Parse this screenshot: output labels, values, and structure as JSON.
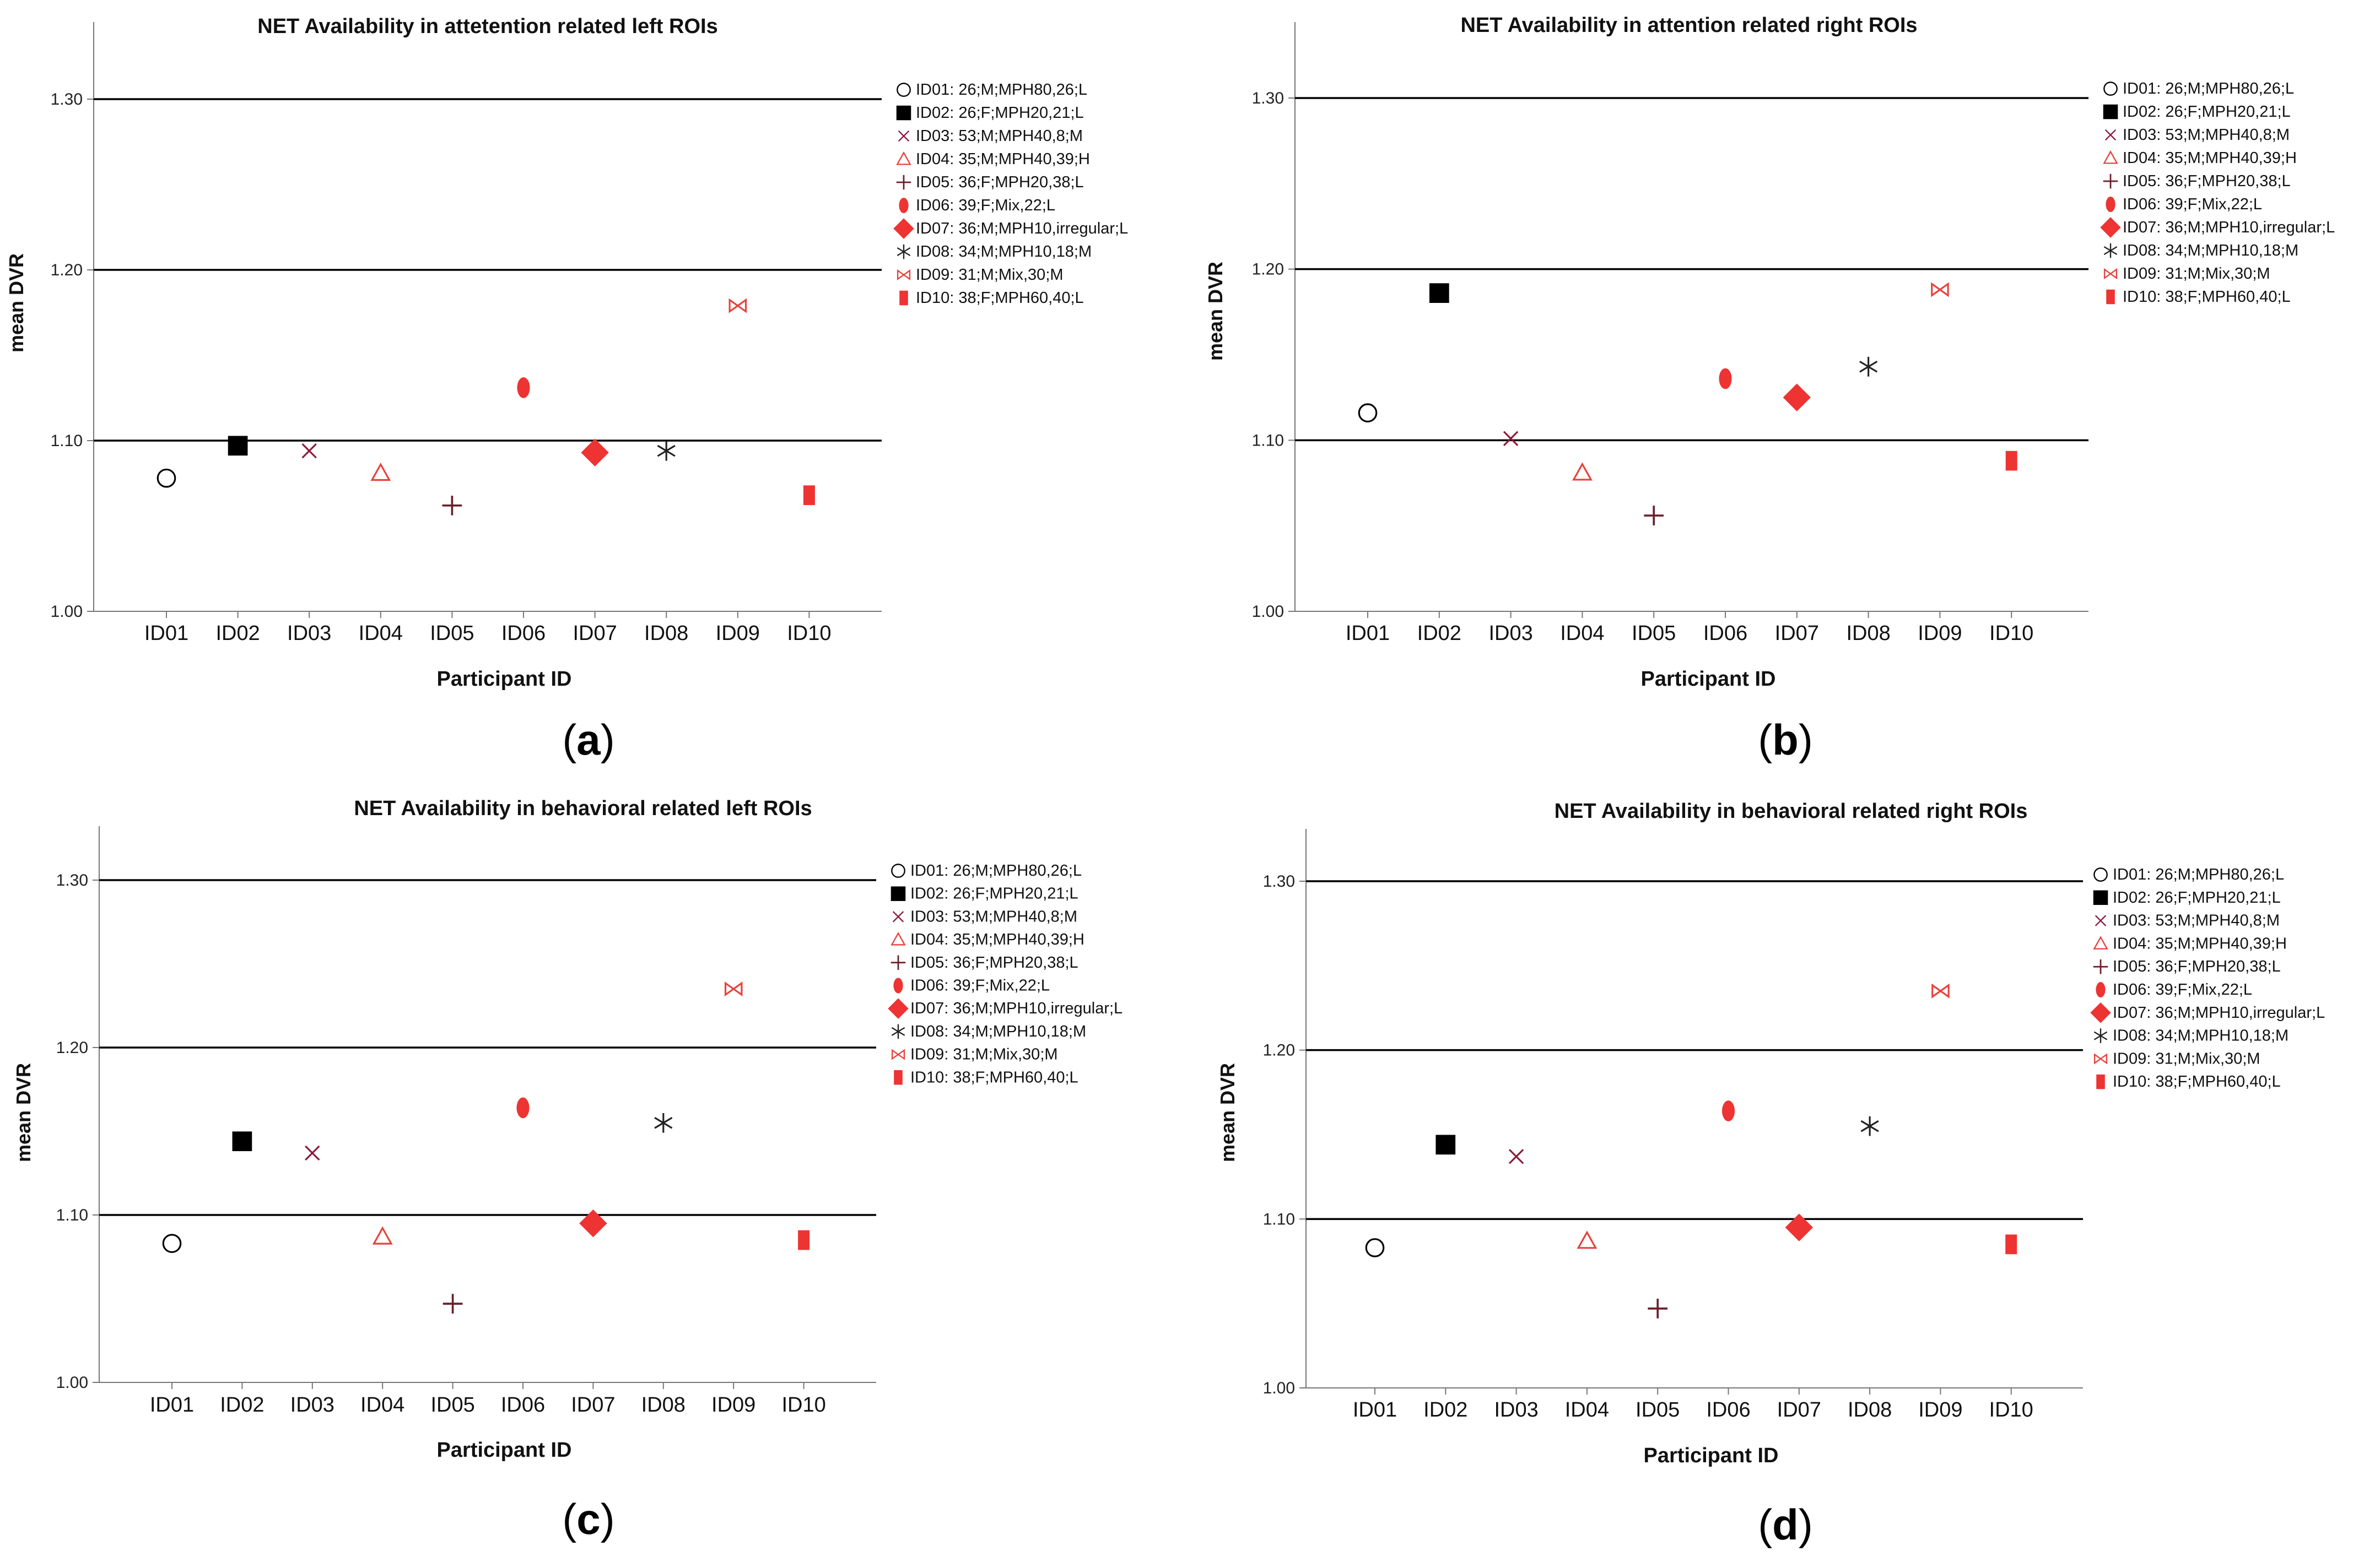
{
  "categories": [
    "ID01",
    "ID02",
    "ID03",
    "ID04",
    "ID05",
    "ID06",
    "ID07",
    "ID08",
    "ID09",
    "ID10"
  ],
  "legend": [
    {
      "text": "ID01: 26;M;MPH80,26;L",
      "marker": "circle-open",
      "color": "#000000"
    },
    {
      "text": "ID02: 26;F;MPH20,21;L",
      "marker": "square",
      "color": "#000000"
    },
    {
      "text": "ID03: 53;M;MPH40,8;M",
      "marker": "x",
      "color": "#8b1a3c"
    },
    {
      "text": "ID04: 35;M;MPH40,39;H",
      "marker": "triangle-open",
      "color": "#e8413c"
    },
    {
      "text": "ID05: 36;F;MPH20,38;L",
      "marker": "plus",
      "color": "#6b1f2a"
    },
    {
      "text": "ID06: 39;F;Mix,22;L",
      "marker": "ellipse",
      "color": "#ee3333"
    },
    {
      "text": "ID07: 36;M;MPH10,irregular;L",
      "marker": "diamond",
      "color": "#ee3333"
    },
    {
      "text": "ID08: 34;M;MPH10,18;M",
      "marker": "asterisk",
      "color": "#222222"
    },
    {
      "text": "ID09: 31;M;Mix,30;M",
      "marker": "bowtie",
      "color": "#e8413c"
    },
    {
      "text": "ID10: 38;F;MPH60,40;L",
      "marker": "rect",
      "color": "#ee3333"
    }
  ],
  "chart_data": [
    {
      "type": "scatter",
      "panel": "(a)",
      "title": "NET Availability in attetention related left ROIs",
      "xlabel": "Participant ID",
      "ylabel": "mean DVR",
      "ylim": [
        1.0,
        1.335
      ],
      "yticks": [
        "1.00",
        "1.10",
        "1.20",
        "1.30"
      ],
      "ref_lines": [
        1.1,
        1.2,
        1.3
      ],
      "values": [
        1.078,
        1.097,
        1.094,
        1.081,
        1.062,
        1.131,
        1.093,
        1.094,
        1.179,
        1.068
      ]
    },
    {
      "type": "scatter",
      "panel": "(b)",
      "title": "NET Availability in attention related right ROIs",
      "xlabel": "Participant ID",
      "ylabel": "mean DVR",
      "ylim": [
        1.0,
        1.335
      ],
      "yticks": [
        "1.00",
        "1.10",
        "1.20",
        "1.30"
      ],
      "ref_lines": [
        1.1,
        1.2,
        1.3
      ],
      "values": [
        1.116,
        1.186,
        1.101,
        1.081,
        1.056,
        1.136,
        1.125,
        1.143,
        1.188,
        1.088
      ]
    },
    {
      "type": "scatter",
      "panel": "(c)",
      "title": "NET Availability in behavioral related left ROIs",
      "xlabel": "Participant ID",
      "ylabel": "mean DVR",
      "ylim": [
        1.0,
        1.335
      ],
      "yticks": [
        "1.00",
        "1.10",
        "1.20",
        "1.30"
      ],
      "ref_lines": [
        1.1,
        1.2,
        1.3
      ],
      "values": [
        1.083,
        1.144,
        1.137,
        1.087,
        1.047,
        1.164,
        1.095,
        1.155,
        1.235,
        1.085
      ]
    },
    {
      "type": "scatter",
      "panel": "(d)",
      "title": "NET Availability in behavioral related right ROIs",
      "xlabel": "Participant ID",
      "ylabel": "mean DVR",
      "ylim": [
        1.0,
        1.335
      ],
      "yticks": [
        "1.00",
        "1.10",
        "1.20",
        "1.30"
      ],
      "ref_lines": [
        1.1,
        1.2,
        1.3
      ],
      "values": [
        1.083,
        1.144,
        1.137,
        1.087,
        1.047,
        1.164,
        1.095,
        1.155,
        1.235,
        1.085
      ]
    }
  ]
}
